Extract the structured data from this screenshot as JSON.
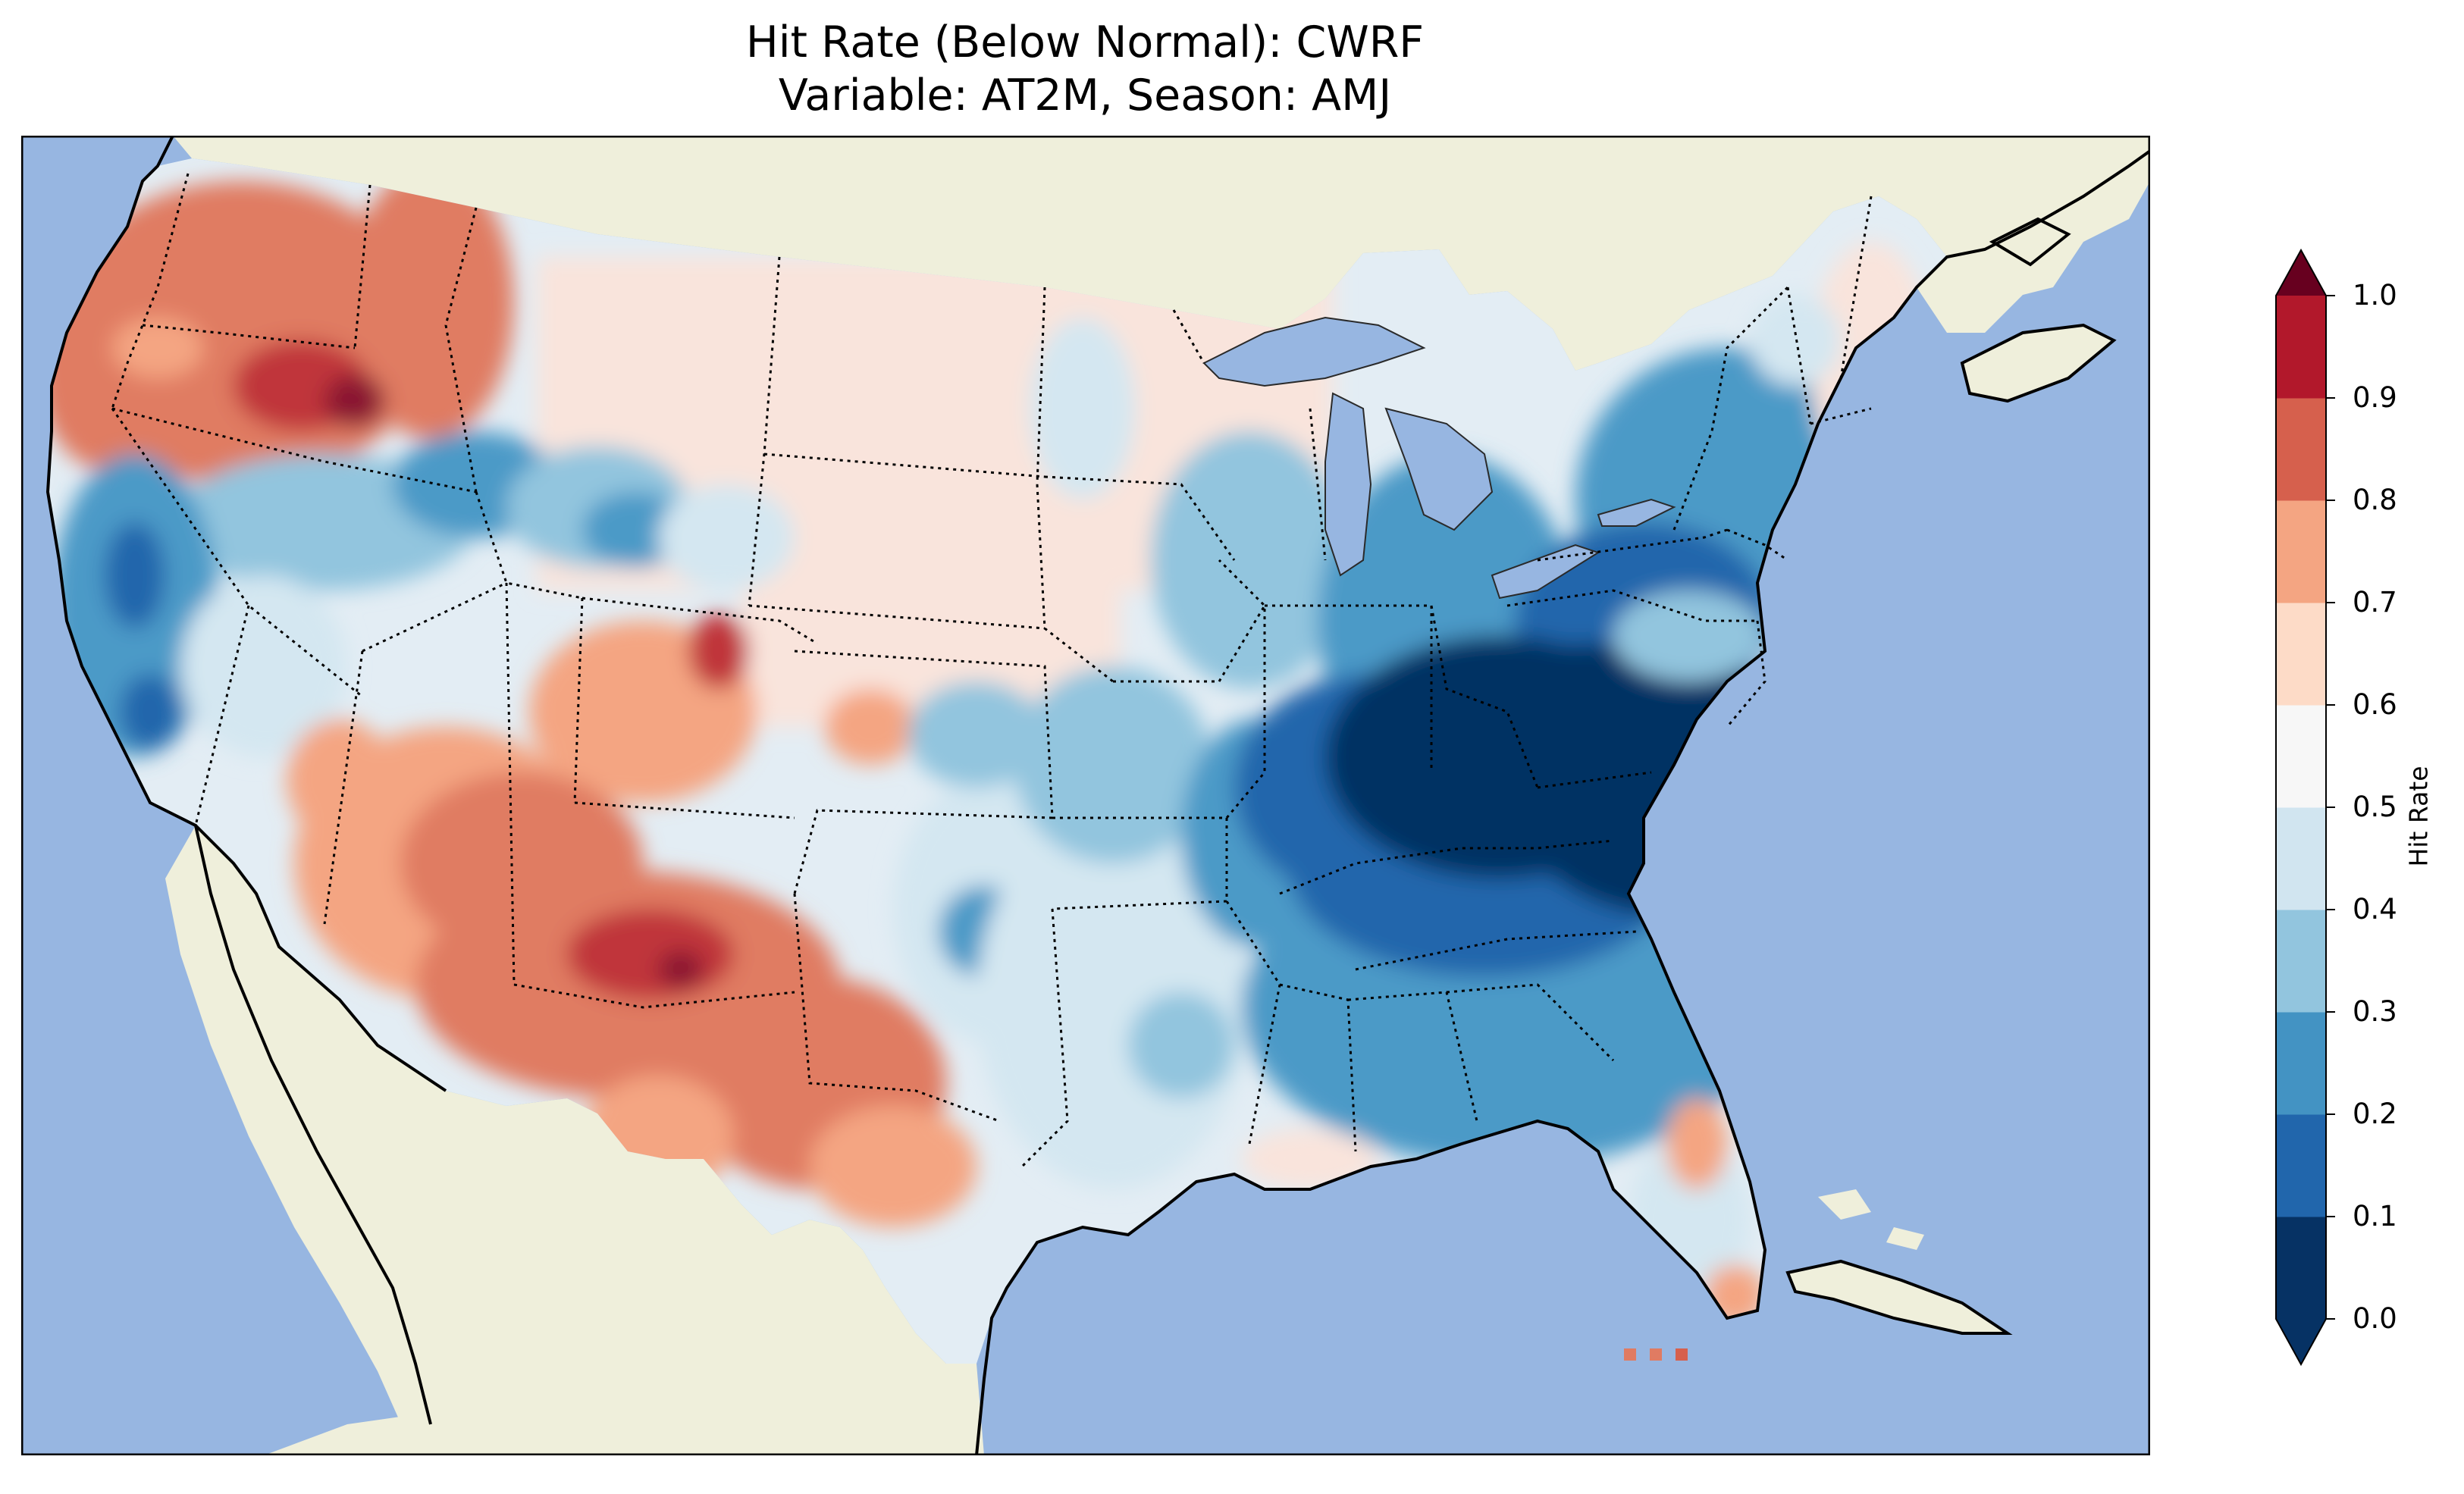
{
  "title_line1": "Hit Rate (Below Normal): CWRF",
  "title_line2": "Variable: AT2M, Season: AMJ",
  "colorbar": {
    "label": "Hit Rate",
    "ticks": [
      "0.0",
      "0.1",
      "0.2",
      "0.3",
      "0.4",
      "0.5",
      "0.6",
      "0.7",
      "0.8",
      "0.9",
      "1.0"
    ],
    "colors": [
      "#063264",
      "#2166ac",
      "#4393c3",
      "#92c5de",
      "#d1e5f0",
      "#f7f7f7",
      "#fddbc7",
      "#f4a582",
      "#d6604d",
      "#b2182b",
      "#67001f"
    ],
    "extend": "both"
  },
  "map": {
    "region": "Contiguous United States",
    "ocean_color": "#97b6e1",
    "land_color": "#efefdb",
    "border_style": "dotted state boundaries, solid coastlines"
  }
}
